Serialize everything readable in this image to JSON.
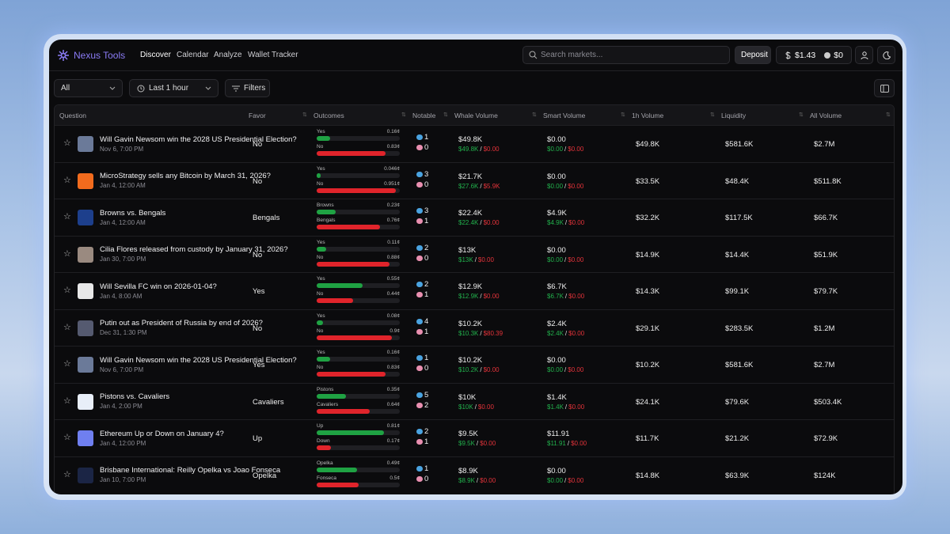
{
  "app": {
    "brand": "Nexus Tools",
    "nav": [
      "Discover",
      "Calendar",
      "Analyze",
      "Wallet Tracker"
    ],
    "search_placeholder": "Search markets...",
    "deposit": "Deposit",
    "balance": "$1.43",
    "points": "$0"
  },
  "toolbar": {
    "category": "All",
    "timeframe": "Last 1 hour",
    "filters": "Filters"
  },
  "separator": "/",
  "table": {
    "columns": [
      "Question",
      "Favor",
      "Outcomes",
      "Notable",
      "Whale Volume",
      "Smart Volume",
      "1h Volume",
      "Liquidity",
      "All Volume"
    ],
    "rows": [
      {
        "question": "Will Gavin Newsom win the 2028 US Presidential Election?",
        "date": "Nov 6, 7:00 PM",
        "favor": "No",
        "outcomes": [
          {
            "name": "Yes",
            "price": {
              "value": 0.16,
              "label": "0.16¢"
            }
          },
          {
            "name": "No",
            "price": {
              "value": 0.83,
              "label": "0.83¢"
            }
          }
        ],
        "whales": 1,
        "smart": 0,
        "whale_volume": {
          "total": "$49.8K",
          "buy": "$49.8K",
          "sell": "$0.00"
        },
        "smart_volume": {
          "total": "$0.00",
          "buy": "$0.00",
          "sell": "$0.00"
        },
        "volume_1h": "$49.8K",
        "liquidity": "$581.6K",
        "all_volume": "$2.7M"
      },
      {
        "question": "MicroStrategy sells any Bitcoin by March 31, 2026?",
        "date": "Jan 4, 12:00 AM",
        "favor": "No",
        "outcomes": [
          {
            "name": "Yes",
            "price": {
              "value": 0.046,
              "label": "0.046¢"
            }
          },
          {
            "name": "No",
            "price": {
              "value": 0.951,
              "label": "0.951¢"
            }
          }
        ],
        "whales": 3,
        "smart": 0,
        "whale_volume": {
          "total": "$21.7K",
          "buy": "$27.6K",
          "sell": "$5.9K"
        },
        "smart_volume": {
          "total": "$0.00",
          "buy": "$0.00",
          "sell": "$0.00"
        },
        "volume_1h": "$33.5K",
        "liquidity": "$48.4K",
        "all_volume": "$511.8K"
      },
      {
        "question": "Browns vs. Bengals",
        "date": "Jan 4, 12:00 AM",
        "favor": "Bengals",
        "outcomes": [
          {
            "name": "Browns",
            "price": {
              "value": 0.23,
              "label": "0.23¢"
            }
          },
          {
            "name": "Bengals",
            "price": {
              "value": 0.76,
              "label": "0.76¢"
            }
          }
        ],
        "whales": 3,
        "smart": 1,
        "whale_volume": {
          "total": "$22.4K",
          "buy": "$22.4K",
          "sell": "$0.00"
        },
        "smart_volume": {
          "total": "$4.9K",
          "buy": "$4.9K",
          "sell": "$0.00"
        },
        "volume_1h": "$32.2K",
        "liquidity": "$117.5K",
        "all_volume": "$66.7K"
      },
      {
        "question": "Cilia Flores released from custody by January 31, 2026?",
        "date": "Jan 30, 7:00 PM",
        "favor": "No",
        "outcomes": [
          {
            "name": "Yes",
            "price": {
              "value": 0.11,
              "label": "0.11¢"
            }
          },
          {
            "name": "No",
            "price": {
              "value": 0.88,
              "label": "0.88¢"
            }
          }
        ],
        "whales": 2,
        "smart": 0,
        "whale_volume": {
          "total": "$13K",
          "buy": "$13K",
          "sell": "$0.00"
        },
        "smart_volume": {
          "total": "$0.00",
          "buy": "$0.00",
          "sell": "$0.00"
        },
        "volume_1h": "$14.9K",
        "liquidity": "$14.4K",
        "all_volume": "$51.9K"
      },
      {
        "question": "Will Sevilla FC win on 2026-01-04?",
        "date": "Jan 4, 8:00 AM",
        "favor": "Yes",
        "outcomes": [
          {
            "name": "Yes",
            "price": {
              "value": 0.55,
              "label": "0.55¢"
            }
          },
          {
            "name": "No",
            "price": {
              "value": 0.44,
              "label": "0.44¢"
            }
          }
        ],
        "whales": 2,
        "smart": 1,
        "whale_volume": {
          "total": "$12.9K",
          "buy": "$12.9K",
          "sell": "$0.00"
        },
        "smart_volume": {
          "total": "$6.7K",
          "buy": "$6.7K",
          "sell": "$0.00"
        },
        "volume_1h": "$14.3K",
        "liquidity": "$99.1K",
        "all_volume": "$79.7K"
      },
      {
        "question": "Putin out as President of Russia by end of 2026?",
        "date": "Dec 31, 1:30 PM",
        "favor": "No",
        "outcomes": [
          {
            "name": "Yes",
            "price": {
              "value": 0.08,
              "label": "0.08¢"
            }
          },
          {
            "name": "No",
            "price": {
              "value": 0.9,
              "label": "0.9¢"
            }
          }
        ],
        "whales": 4,
        "smart": 1,
        "whale_volume": {
          "total": "$10.2K",
          "buy": "$10.3K",
          "sell": "$80.39"
        },
        "smart_volume": {
          "total": "$2.4K",
          "buy": "$2.4K",
          "sell": "$0.00"
        },
        "volume_1h": "$29.1K",
        "liquidity": "$283.5K",
        "all_volume": "$1.2M"
      },
      {
        "question": "Will Gavin Newsom win the 2028 US Presidential Election?",
        "date": "Nov 6, 7:00 PM",
        "favor": "Yes",
        "outcomes": [
          {
            "name": "Yes",
            "price": {
              "value": 0.16,
              "label": "0.16¢"
            }
          },
          {
            "name": "No",
            "price": {
              "value": 0.83,
              "label": "0.83¢"
            }
          }
        ],
        "whales": 1,
        "smart": 0,
        "whale_volume": {
          "total": "$10.2K",
          "buy": "$10.2K",
          "sell": "$0.00"
        },
        "smart_volume": {
          "total": "$0.00",
          "buy": "$0.00",
          "sell": "$0.00"
        },
        "volume_1h": "$10.2K",
        "liquidity": "$581.6K",
        "all_volume": "$2.7M"
      },
      {
        "question": "Pistons vs. Cavaliers",
        "date": "Jan 4, 2:00 PM",
        "favor": "Cavaliers",
        "outcomes": [
          {
            "name": "Pistons",
            "price": {
              "value": 0.35,
              "label": "0.35¢"
            }
          },
          {
            "name": "Cavaliers",
            "price": {
              "value": 0.64,
              "label": "0.64¢"
            }
          }
        ],
        "whales": 5,
        "smart": 2,
        "whale_volume": {
          "total": "$10K",
          "buy": "$10K",
          "sell": "$0.00"
        },
        "smart_volume": {
          "total": "$1.4K",
          "buy": "$1.4K",
          "sell": "$0.00"
        },
        "volume_1h": "$24.1K",
        "liquidity": "$79.6K",
        "all_volume": "$503.4K"
      },
      {
        "question": "Ethereum Up or Down on January 4?",
        "date": "Jan 4, 12:00 PM",
        "favor": "Up",
        "outcomes": [
          {
            "name": "Up",
            "price": {
              "value": 0.81,
              "label": "0.81¢"
            }
          },
          {
            "name": "Down",
            "price": {
              "value": 0.17,
              "label": "0.17¢"
            }
          }
        ],
        "whales": 2,
        "smart": 1,
        "whale_volume": {
          "total": "$9.5K",
          "buy": "$9.5K",
          "sell": "$0.00"
        },
        "smart_volume": {
          "total": "$11.91",
          "buy": "$11.91",
          "sell": "$0.00"
        },
        "volume_1h": "$11.7K",
        "liquidity": "$21.2K",
        "all_volume": "$72.9K"
      },
      {
        "question": "Brisbane International: Reilly Opelka vs Joao Fonseca",
        "date": "Jan 10, 7:00 PM",
        "favor": "Opelka",
        "outcomes": [
          {
            "name": "Opelka",
            "price": {
              "value": 0.49,
              "label": "0.49¢"
            }
          },
          {
            "name": "Fonseca",
            "price": {
              "value": 0.5,
              "label": "0.5¢"
            }
          }
        ],
        "whales": 1,
        "smart": 0,
        "whale_volume": {
          "total": "$8.9K",
          "buy": "$8.9K",
          "sell": "$0.00"
        },
        "smart_volume": {
          "total": "$0.00",
          "buy": "$0.00",
          "sell": "$0.00"
        },
        "volume_1h": "$14.8K",
        "liquidity": "$63.9K",
        "all_volume": "$124K"
      }
    ]
  }
}
